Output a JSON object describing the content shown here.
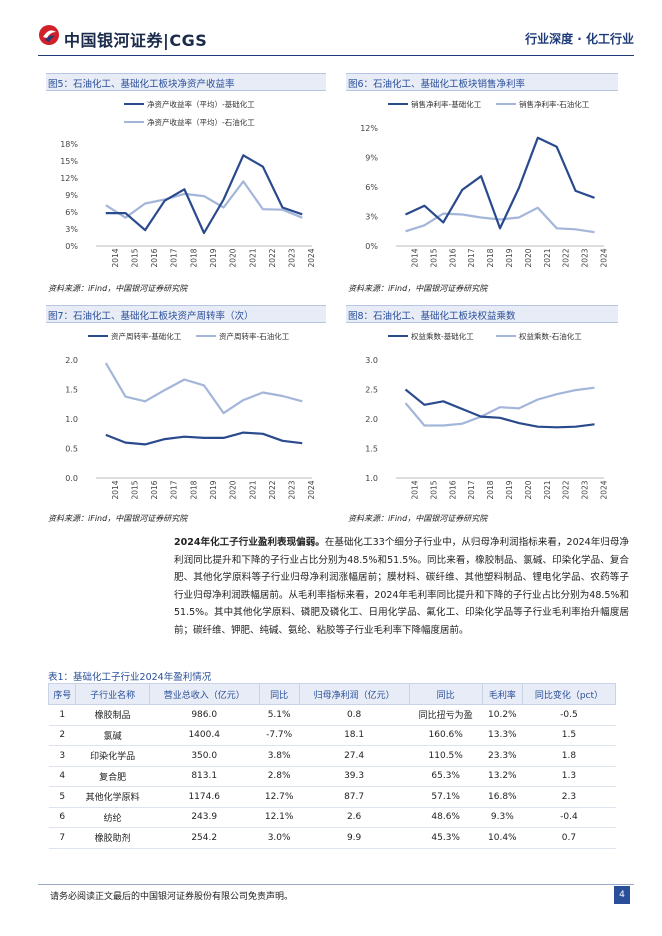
{
  "header": {
    "logo_text": "中国银河证券|CGS",
    "section": "行业深度 · 化工行业"
  },
  "colors": {
    "dark_series": "#2a4a8e",
    "light_series": "#a3b6da",
    "accent": "#1f3b7a"
  },
  "figures": [
    {
      "title": "图5：石油化工、基础化工板块净资产收益率",
      "source": "资料来源：iFind，中国银河证券研究院",
      "chart_data": {
        "type": "line",
        "x": [
          "2014",
          "2015",
          "2016",
          "2017",
          "2018",
          "2019",
          "2020",
          "2021",
          "2022",
          "2023",
          "2024"
        ],
        "yticks": [
          "0%",
          "3%",
          "6%",
          "9%",
          "12%",
          "15%",
          "18%"
        ],
        "ylim": [
          0,
          18
        ],
        "legend_layout": "stacked",
        "series": [
          {
            "name": "净资产收益率（平均）-基础化工",
            "values": [
              5.8,
              5.8,
              2.8,
              8.0,
              10.0,
              2.3,
              8.2,
              16.0,
              14.0,
              6.8,
              5.6
            ]
          },
          {
            "name": "净资产收益率（平均）-石油化工",
            "values": [
              7.2,
              5.0,
              7.5,
              8.2,
              9.2,
              8.8,
              6.8,
              11.4,
              6.5,
              6.4,
              5.0
            ]
          }
        ]
      }
    },
    {
      "title": "图6：石油化工、基础化工板块销售净利率",
      "source": "资料来源：iFind，中国银河证券研究院",
      "chart_data": {
        "type": "line",
        "x": [
          "2014",
          "2015",
          "2016",
          "2017",
          "2018",
          "2019",
          "2020",
          "2021",
          "2022",
          "2023",
          "2024"
        ],
        "yticks": [
          "0%",
          "3%",
          "6%",
          "9%",
          "12%"
        ],
        "ylim": [
          0,
          12
        ],
        "legend_layout": "row",
        "series": [
          {
            "name": "销售净利率-基础化工",
            "values": [
              3.2,
              4.1,
              2.4,
              5.7,
              7.1,
              1.8,
              5.9,
              11.0,
              10.1,
              5.6,
              4.9
            ]
          },
          {
            "name": "销售净利率-石油化工",
            "values": [
              1.5,
              2.1,
              3.3,
              3.2,
              2.9,
              2.7,
              2.9,
              3.9,
              1.8,
              1.7,
              1.4
            ]
          }
        ]
      }
    },
    {
      "title": "图7：石油化工、基础化工板块资产周转率（次）",
      "source": "资料来源：iFind，中国银河证券研究院",
      "chart_data": {
        "type": "line",
        "x": [
          "2014",
          "2015",
          "2016",
          "2017",
          "2018",
          "2019",
          "2020",
          "2021",
          "2022",
          "2023",
          "2024"
        ],
        "yticks": [
          "0.0",
          "0.5",
          "1.0",
          "1.5",
          "2.0"
        ],
        "ylim": [
          0,
          2
        ],
        "legend_layout": "row",
        "series": [
          {
            "name": "资产周转率-基础化工",
            "values": [
              0.73,
              0.6,
              0.57,
              0.66,
              0.7,
              0.68,
              0.68,
              0.77,
              0.75,
              0.63,
              0.59
            ]
          },
          {
            "name": "资产周转率-石油化工",
            "values": [
              1.95,
              1.38,
              1.3,
              1.49,
              1.67,
              1.57,
              1.1,
              1.32,
              1.45,
              1.39,
              1.3
            ]
          }
        ]
      }
    },
    {
      "title": "图8：石油化工、基础化工板块权益乘数",
      "source": "资料来源：iFind，中国银河证券研究院",
      "chart_data": {
        "type": "line",
        "x": [
          "2014",
          "2015",
          "2016",
          "2017",
          "2018",
          "2019",
          "2020",
          "2021",
          "2022",
          "2023",
          "2024"
        ],
        "yticks": [
          "1.0",
          "1.5",
          "2.0",
          "2.5",
          "3.0"
        ],
        "ylim": [
          1,
          3
        ],
        "legend_layout": "row",
        "series": [
          {
            "name": "权益乘数-基础化工",
            "values": [
              2.5,
              2.24,
              2.3,
              2.17,
              2.04,
              2.02,
              1.93,
              1.87,
              1.86,
              1.87,
              1.91
            ]
          },
          {
            "name": "权益乘数-石油化工",
            "values": [
              2.27,
              1.89,
              1.89,
              1.92,
              2.04,
              2.2,
              2.18,
              2.33,
              2.42,
              2.49,
              2.53
            ]
          }
        ]
      }
    }
  ],
  "paragraph": {
    "bold": "2024年化工子行业盈利表现偏弱。",
    "text": "在基础化工33个细分子行业中，从归母净利润指标来看，2024年归母净利润同比提升和下降的子行业占比分别为48.5%和51.5%。同比来看，橡胶制品、氯碱、印染化学品、复合肥、其他化学原料等子行业归母净利润涨幅居前；膜材料、碳纤维、其他塑料制品、锂电化学品、农药等子行业归母净利润跌幅居前。从毛利率指标来看，2024年毛利率同比提升和下降的子行业占比分别为48.5%和51.5%。其中其他化学原料、磷肥及磷化工、日用化学品、氟化工、印染化学品等子行业毛利率抬升幅度居前；碳纤维、钾肥、纯碱、氨纶、粘胶等子行业毛利率下降幅度居前。"
  },
  "table": {
    "title": "表1：基础化工子行业2024年盈利情况",
    "headers": [
      "序号",
      "子行业名称",
      "营业总收入（亿元）",
      "同比",
      "归母净利润（亿元）",
      "同比",
      "毛利率",
      "同比变化（pct）"
    ],
    "rows": [
      [
        "1",
        "橡胶制品",
        "986.0",
        "5.1%",
        "0.8",
        "同比扭亏为盈",
        "10.2%",
        "-0.5"
      ],
      [
        "2",
        "氯碱",
        "1400.4",
        "-7.7%",
        "18.1",
        "160.6%",
        "13.3%",
        "1.5"
      ],
      [
        "3",
        "印染化学品",
        "350.0",
        "3.8%",
        "27.4",
        "110.5%",
        "23.3%",
        "1.8"
      ],
      [
        "4",
        "复合肥",
        "813.1",
        "2.8%",
        "39.3",
        "65.3%",
        "13.2%",
        "1.3"
      ],
      [
        "5",
        "其他化学原料",
        "1174.6",
        "12.7%",
        "87.7",
        "57.1%",
        "16.8%",
        "2.3"
      ],
      [
        "6",
        "纺纶",
        "243.9",
        "12.1%",
        "2.6",
        "48.6%",
        "9.3%",
        "-0.4"
      ],
      [
        "7",
        "橡胶助剂",
        "254.2",
        "3.0%",
        "9.9",
        "45.3%",
        "10.4%",
        "0.7"
      ]
    ]
  },
  "footer": {
    "disclaimer": "请务必阅读正文最后的中国银河证券股份有限公司免责声明。",
    "page": "4"
  }
}
